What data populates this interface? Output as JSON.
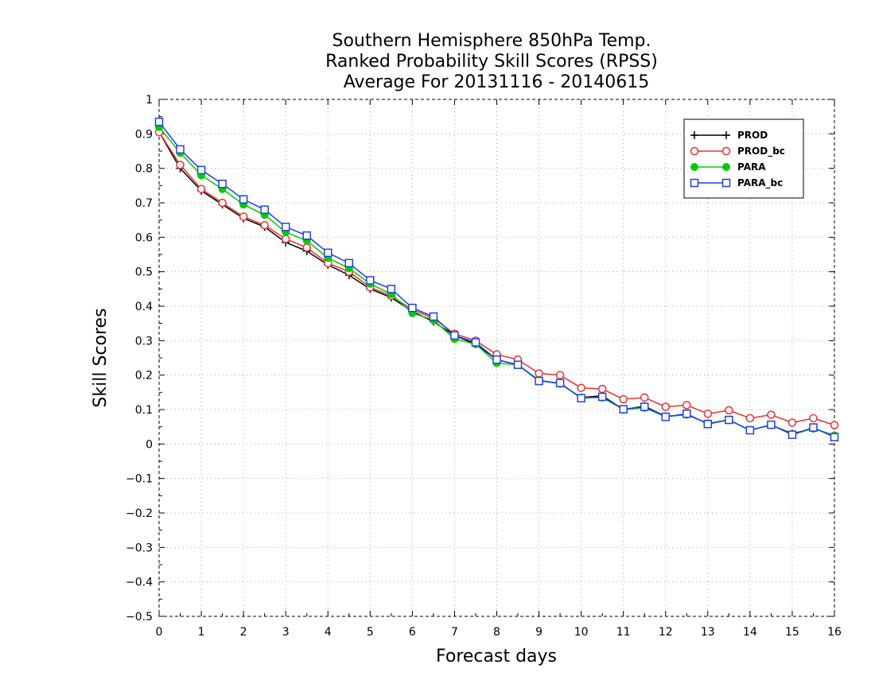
{
  "chart_data": {
    "type": "line",
    "title": [
      "Southern Hemisphere 850hPa Temp.",
      "Ranked Probability Skill Scores (RPSS)",
      "Average For 20131116 - 20140615"
    ],
    "xlabel": "Forecast days",
    "ylabel": "Skill Scores",
    "xlim": [
      0,
      16
    ],
    "ylim": [
      -0.5,
      1
    ],
    "xticks": [
      0,
      1,
      2,
      3,
      4,
      5,
      6,
      7,
      8,
      9,
      10,
      11,
      12,
      13,
      14,
      15,
      16
    ],
    "yticks": [
      -0.5,
      -0.4,
      -0.3,
      -0.2,
      -0.1,
      0,
      0.1,
      0.2,
      0.3,
      0.4,
      0.5,
      0.6,
      0.7,
      0.8,
      0.9,
      1
    ],
    "ytick_labels": [
      "−0.5",
      "−0.4",
      "−0.3",
      "−0.2",
      "−0.1",
      "0",
      "0.1",
      "0.2",
      "0.3",
      "0.4",
      "0.5",
      "0.6",
      "0.7",
      "0.8",
      "0.9",
      "1"
    ],
    "grid": true,
    "legend_position": "top-right",
    "x": [
      0,
      0.5,
      1,
      1.5,
      2,
      2.5,
      3,
      3.5,
      4,
      4.5,
      5,
      5.5,
      6,
      6.5,
      7,
      7.5,
      8,
      8.5,
      9,
      9.5,
      10,
      10.5,
      11,
      11.5,
      12,
      12.5,
      13,
      13.5,
      14,
      14.5,
      15,
      15.5,
      16
    ],
    "series": [
      {
        "name": "PROD",
        "color": "#000000",
        "marker": "plus",
        "values": [
          0.905,
          0.8,
          0.735,
          0.695,
          0.655,
          0.63,
          0.585,
          0.56,
          0.52,
          0.49,
          0.45,
          0.425,
          0.385,
          0.355,
          0.315,
          0.29,
          0.245,
          0.23,
          0.185,
          0.175,
          0.135,
          0.14,
          0.1,
          0.11,
          0.08,
          0.085,
          0.06,
          0.07,
          0.04,
          0.055,
          0.03,
          0.045,
          0.025
        ]
      },
      {
        "name": "PROD_bc",
        "color": "#e83030",
        "marker": "circle",
        "values": [
          0.905,
          0.81,
          0.74,
          0.7,
          0.66,
          0.635,
          0.595,
          0.57,
          0.525,
          0.5,
          0.455,
          0.43,
          0.39,
          0.365,
          0.32,
          0.3,
          0.26,
          0.245,
          0.205,
          0.2,
          0.163,
          0.16,
          0.13,
          0.135,
          0.108,
          0.113,
          0.088,
          0.098,
          0.075,
          0.085,
          0.062,
          0.075,
          0.055
        ]
      },
      {
        "name": "PARA",
        "color": "#00cc00",
        "marker": "filled-circle",
        "values": [
          0.92,
          0.845,
          0.78,
          0.74,
          0.695,
          0.665,
          0.615,
          0.59,
          0.54,
          0.51,
          0.465,
          0.435,
          0.38,
          0.36,
          0.305,
          0.29,
          0.235,
          0.23,
          0.185,
          0.175,
          0.135,
          0.135,
          0.1,
          0.105,
          0.08,
          0.085,
          0.06,
          0.07,
          0.04,
          0.055,
          0.028,
          0.045,
          0.025
        ]
      },
      {
        "name": "PARA_bc",
        "color": "#2040e0",
        "marker": "square",
        "values": [
          0.935,
          0.855,
          0.795,
          0.755,
          0.71,
          0.68,
          0.63,
          0.605,
          0.555,
          0.525,
          0.475,
          0.45,
          0.395,
          0.37,
          0.315,
          0.295,
          0.245,
          0.23,
          0.183,
          0.177,
          0.133,
          0.137,
          0.101,
          0.108,
          0.079,
          0.088,
          0.058,
          0.07,
          0.04,
          0.056,
          0.027,
          0.048,
          0.02
        ]
      }
    ]
  }
}
